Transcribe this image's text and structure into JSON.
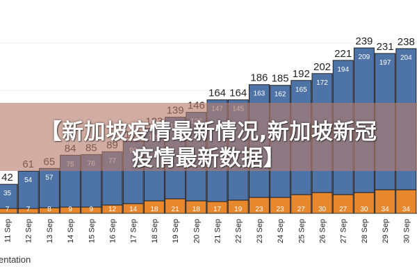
{
  "chart_data": {
    "type": "bar",
    "stacked": true,
    "categories": [
      "11 Sep",
      "12 Sep",
      "13 Sep",
      "14 Sep",
      "15 Sep",
      "16 Sep",
      "17 Sep",
      "18 Sep",
      "19 Sep",
      "20 Sep",
      "21 Sep",
      "22 Sep",
      "23 Sep",
      "24 Sep",
      "25 Sep",
      "26 Sep",
      "27 Sep",
      "28 Sep",
      "29 Sep",
      "30 Sep"
    ],
    "series": [
      {
        "color": "#e8882e",
        "values": [
          7,
          7,
          8,
          9,
          9,
          12,
          14,
          18,
          21,
          18,
          17,
          19,
          23,
          23,
          27,
          30,
          27,
          30,
          34,
          34
        ]
      },
      {
        "color": "#4e73a6",
        "values": [
          35,
          54,
          57,
          75,
          76,
          77,
          90,
          105,
          118,
          128,
          147,
          145,
          163,
          162,
          165,
          172,
          194,
          209,
          197,
          204
        ]
      }
    ],
    "totals": [
      42,
      61,
      65,
      84,
      85,
      89,
      104,
      123,
      139,
      146,
      164,
      164,
      186,
      185,
      192,
      202,
      221,
      239,
      231,
      238
    ],
    "ylim": [
      0,
      250
    ]
  },
  "banner": {
    "line1": "【新加坡疫情最新情况,新加坡新冠",
    "line2": "疫情最新数据】"
  },
  "footer": {
    "label": "entation"
  },
  "colors": {
    "banner_overlay": "#b67a6a"
  }
}
